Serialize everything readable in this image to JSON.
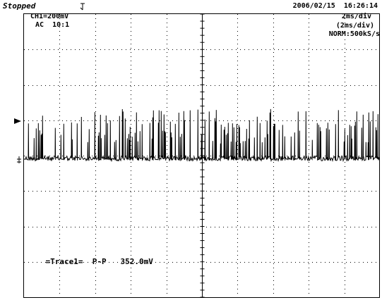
{
  "header": {
    "status": "Stopped",
    "datetime": "2006/02/15  16:26:14"
  },
  "channel": {
    "setting": "CH1=200mV",
    "coupling": "AC  10:1"
  },
  "timebase": {
    "div": "2ms/div",
    "div_secondary": "(2ms/div)",
    "sample_rate": "NORM:500kS/s"
  },
  "measurement": {
    "label": "=Trace1=",
    "type": "P-P",
    "value": "352.0mV"
  },
  "markers": {
    "trigger_label": "T",
    "ground_label": "1"
  },
  "trace": {
    "color": "#000000",
    "baseline_div": 0,
    "spike_max_div": 1.4,
    "noise_div": 0.07
  }
}
